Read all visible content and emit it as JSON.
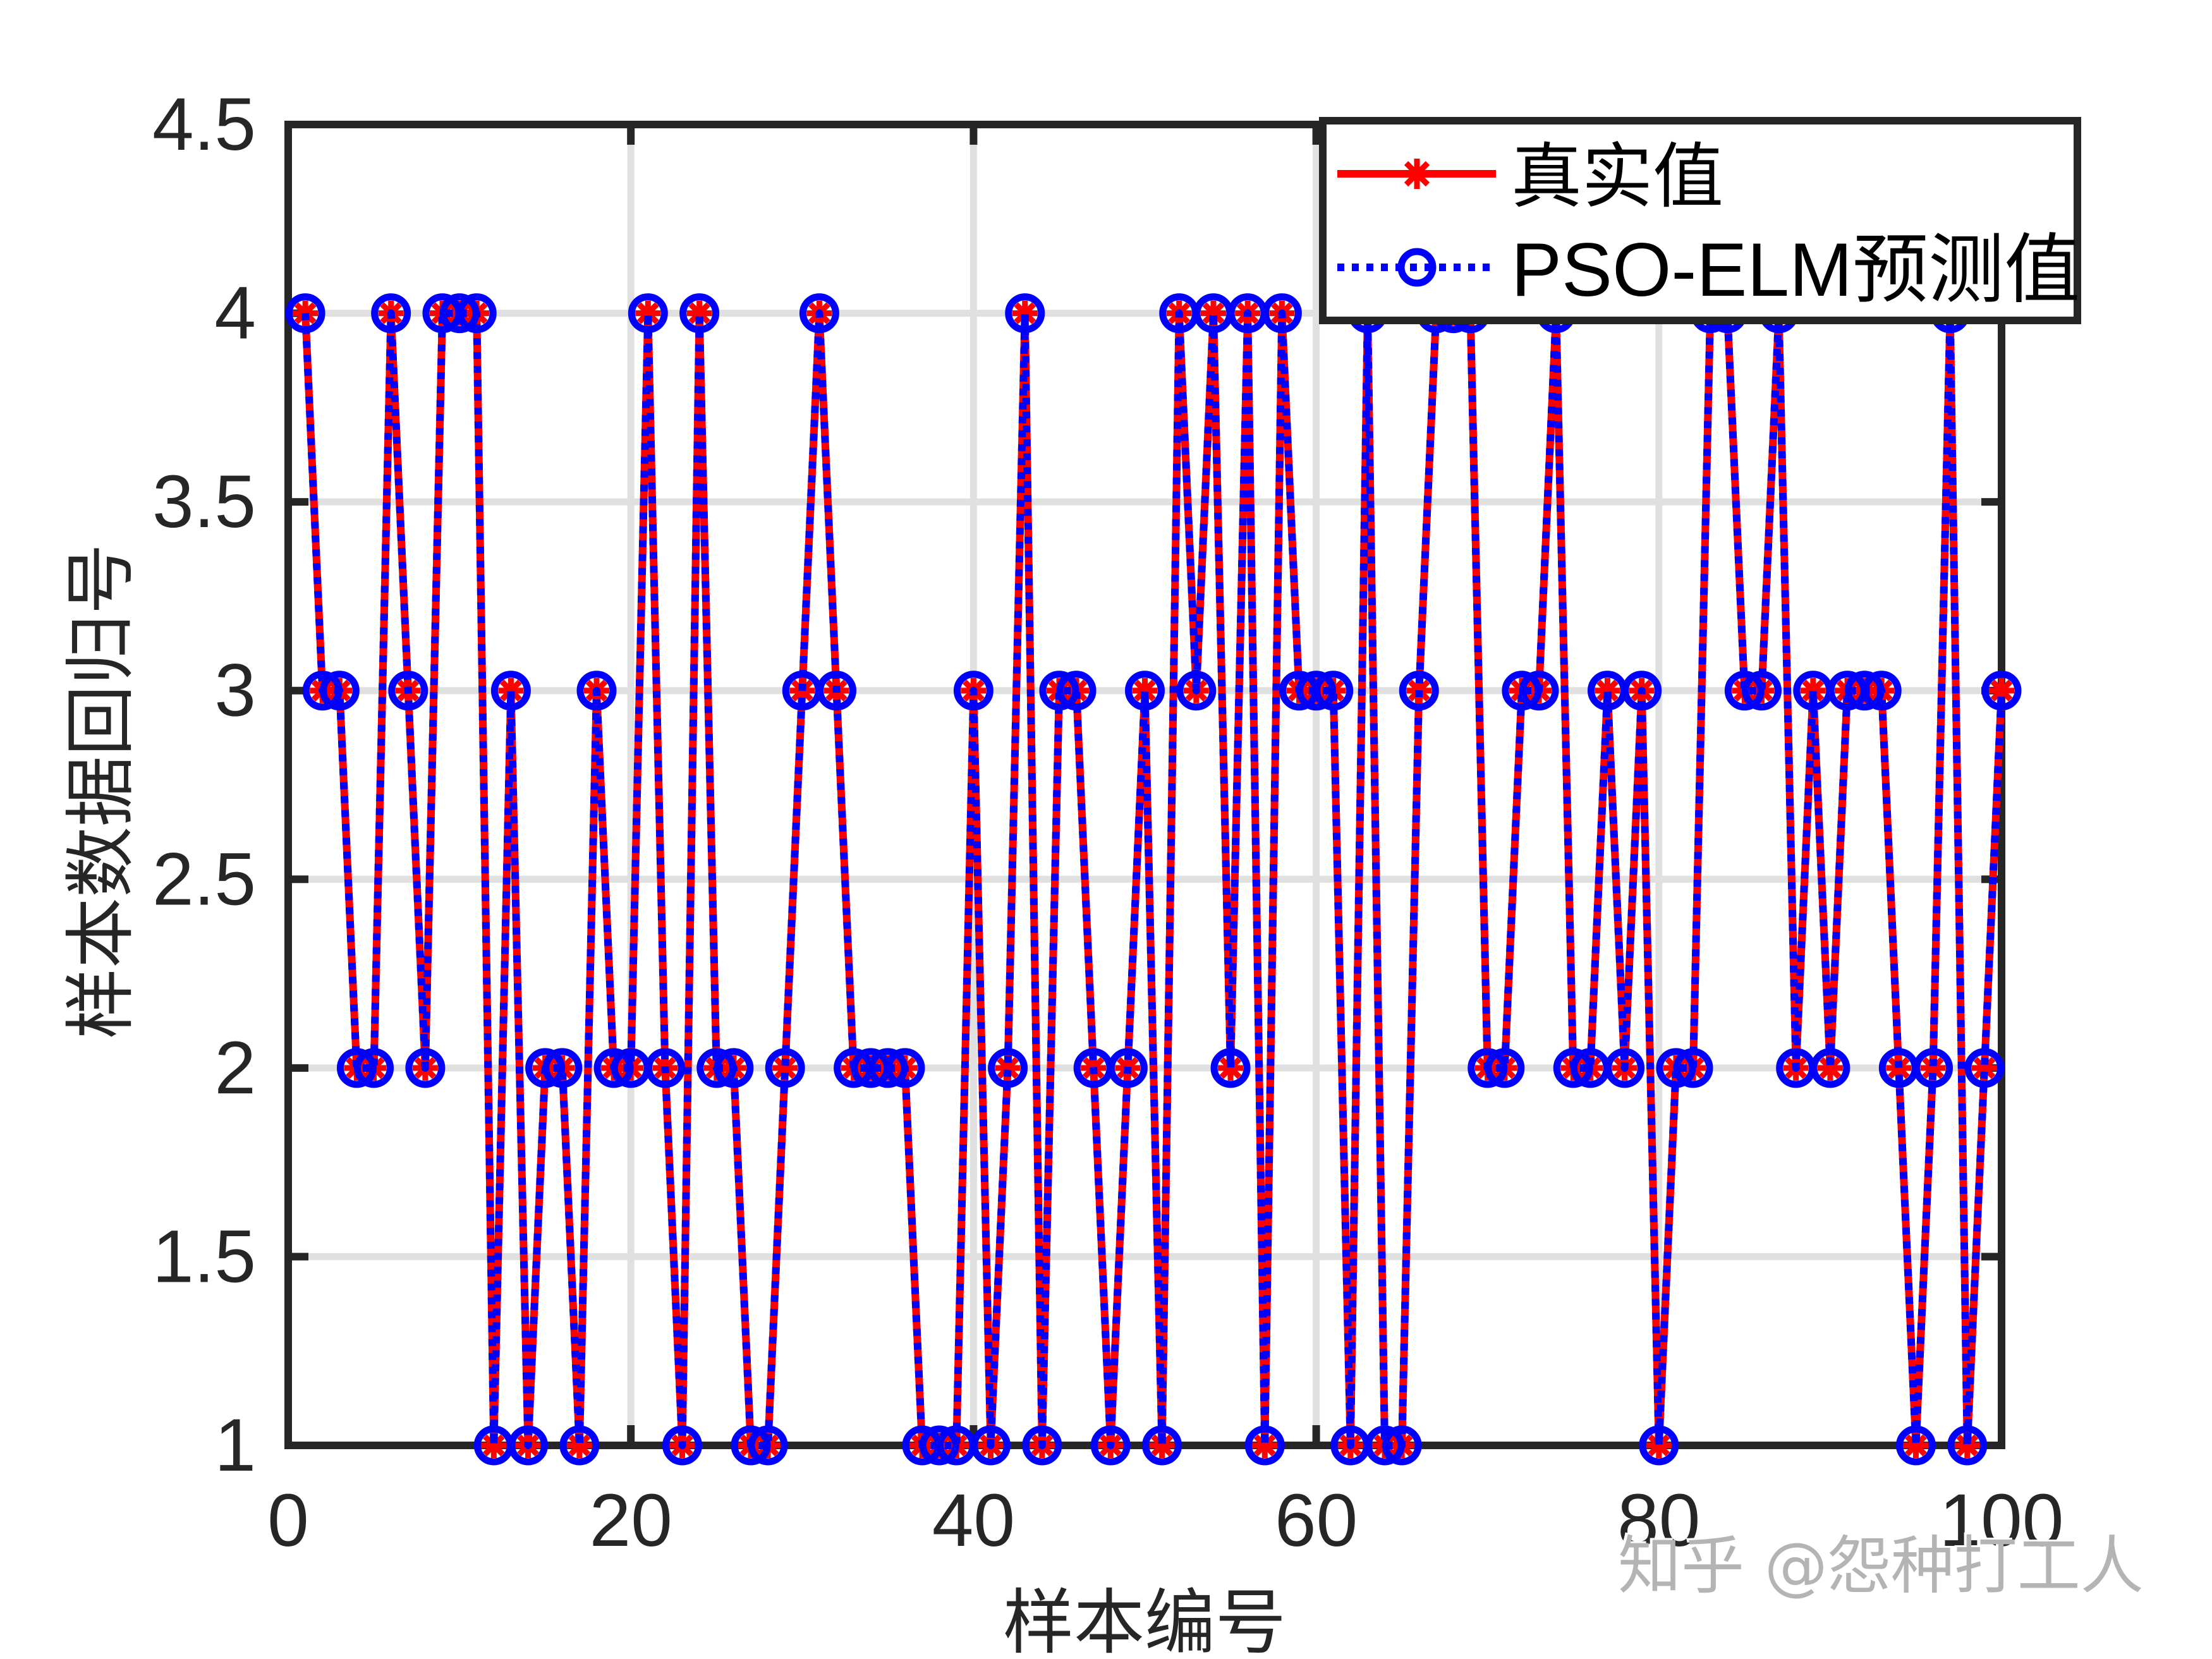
{
  "chart_data": {
    "type": "line",
    "title": "",
    "xlabel": "样本编号",
    "ylabel": "样本数据回归号",
    "xlim": [
      0,
      100
    ],
    "ylim": [
      1,
      4.5
    ],
    "xticks": [
      0,
      20,
      40,
      60,
      80,
      100
    ],
    "xticklabels": [
      "0",
      "20",
      "40",
      "60",
      "80",
      "100"
    ],
    "yticks": [
      1,
      1.5,
      2,
      2.5,
      3,
      3.5,
      4,
      4.5
    ],
    "yticklabels": [
      "1",
      "1.5",
      "2",
      "2.5",
      "3",
      "3.5",
      "4",
      "4.5"
    ],
    "grid": true,
    "box": true,
    "legend_position": "northeast",
    "axis_color": "#262626",
    "grid_color": "#e0e0e0",
    "x": [
      1,
      2,
      3,
      4,
      5,
      6,
      7,
      8,
      9,
      10,
      11,
      12,
      13,
      14,
      15,
      16,
      17,
      18,
      19,
      20,
      21,
      22,
      23,
      24,
      25,
      26,
      27,
      28,
      29,
      30,
      31,
      32,
      33,
      34,
      35,
      36,
      37,
      38,
      39,
      40,
      41,
      42,
      43,
      44,
      45,
      46,
      47,
      48,
      49,
      50,
      51,
      52,
      53,
      54,
      55,
      56,
      57,
      58,
      59,
      60,
      61,
      62,
      63,
      64,
      65,
      66,
      67,
      68,
      69,
      70,
      71,
      72,
      73,
      74,
      75,
      76,
      77,
      78,
      79,
      80,
      81,
      82,
      83,
      84,
      85,
      86,
      87,
      88,
      89,
      90,
      91,
      92,
      93,
      94,
      95,
      96,
      97,
      98,
      99,
      100
    ],
    "series": [
      {
        "name": "真实值",
        "color": "#ff0000",
        "line_style": "solid",
        "marker": "asterisk",
        "values": [
          4,
          3,
          3,
          2,
          2,
          4,
          3,
          2,
          4,
          4,
          4,
          1,
          3,
          1,
          2,
          2,
          1,
          3,
          2,
          2,
          4,
          2,
          1,
          4,
          2,
          2,
          1,
          1,
          2,
          3,
          4,
          3,
          2,
          2,
          2,
          2,
          1,
          1,
          1,
          3,
          1,
          2,
          4,
          1,
          3,
          3,
          2,
          1,
          2,
          3,
          1,
          4,
          3,
          4,
          2,
          4,
          1,
          4,
          3,
          3,
          3,
          1,
          4,
          1,
          1,
          3,
          4,
          4,
          4,
          2,
          2,
          3,
          3,
          4,
          2,
          2,
          3,
          2,
          3,
          1,
          2,
          2,
          4,
          4,
          3,
          3,
          4,
          2,
          3,
          2,
          3,
          3,
          3,
          2,
          1,
          2,
          4,
          1,
          2,
          3
        ]
      },
      {
        "name": "PSO-ELM预测值",
        "color": "#0000ff",
        "line_style": "dotted",
        "marker": "circle",
        "values": [
          4,
          3,
          3,
          2,
          2,
          4,
          3,
          2,
          4,
          4,
          4,
          1,
          3,
          1,
          2,
          2,
          1,
          3,
          2,
          2,
          4,
          2,
          1,
          4,
          2,
          2,
          1,
          1,
          2,
          3,
          4,
          3,
          2,
          2,
          2,
          2,
          1,
          1,
          1,
          3,
          1,
          2,
          4,
          1,
          3,
          3,
          2,
          1,
          2,
          3,
          1,
          4,
          3,
          4,
          2,
          4,
          1,
          4,
          3,
          3,
          3,
          1,
          4,
          1,
          1,
          3,
          4,
          4,
          4,
          2,
          2,
          3,
          3,
          4,
          2,
          2,
          3,
          2,
          3,
          1,
          2,
          2,
          4,
          4,
          3,
          3,
          4,
          2,
          3,
          2,
          3,
          3,
          3,
          2,
          1,
          2,
          4,
          1,
          2,
          3
        ]
      }
    ]
  },
  "watermark": {
    "text": "知乎 @怨种打工人",
    "color": "#b4b4b4"
  }
}
